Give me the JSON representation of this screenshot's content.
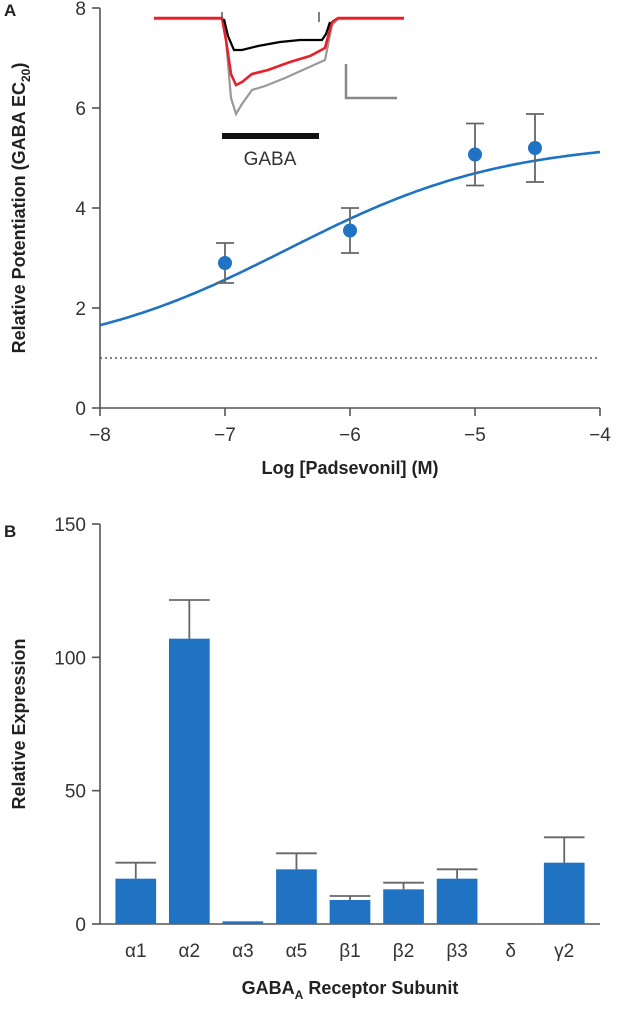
{
  "panels": {
    "a": {
      "letter": "A"
    },
    "b": {
      "letter": "B"
    }
  },
  "inset": {
    "label": "GABA",
    "trace_colors": {
      "control": "#000000",
      "padsevonil": "#e8202a",
      "washout": "#999999"
    }
  },
  "colors": {
    "accent": "#1f73c2",
    "axis": "#555555",
    "error_bar": "#666666"
  },
  "chart_data": [
    {
      "type": "scatter",
      "xlabel": "Log [Padsevonil] (M)",
      "ylabel_parts": {
        "main": "Relative Potentiation (GABA EC",
        "sub": "20",
        "close": ")"
      },
      "xlim": [
        -8,
        -4
      ],
      "ylim": [
        0,
        8
      ],
      "xticks": [
        -8,
        -7,
        -6,
        -5,
        -4
      ],
      "yticks": [
        0,
        2,
        4,
        6,
        8
      ],
      "xtick_labels": [
        "−8",
        "−7",
        "−6",
        "−5",
        "−4"
      ],
      "ytick_labels": [
        "0",
        "2",
        "4",
        "6",
        "8"
      ],
      "points": [
        {
          "x": -7.0,
          "y": 2.9,
          "err": 0.4
        },
        {
          "x": -6.0,
          "y": 3.55,
          "err": 0.45
        },
        {
          "x": -5.0,
          "y": 5.07,
          "err": 0.62
        },
        {
          "x": -4.52,
          "y": 5.2,
          "err": 0.68
        }
      ],
      "fit": {
        "bottom": 1.0,
        "top": 5.35,
        "log_ec50": -6.5,
        "hill": 0.5
      },
      "baseline": 1.0,
      "grid": false
    },
    {
      "type": "bar",
      "xlabel_parts": {
        "main": "GABA",
        "sub": "A",
        "rest": " Receptor Subunit"
      },
      "ylabel": "Relative Expression",
      "categories": [
        "α1",
        "α2",
        "α3",
        "α5",
        "β1",
        "β2",
        "β3",
        "δ",
        "γ2"
      ],
      "values": [
        17,
        107,
        1,
        20.5,
        9,
        13,
        17,
        0,
        23
      ],
      "errors": [
        6,
        14.5,
        0,
        6,
        1.5,
        2.5,
        3.5,
        0,
        9.5
      ],
      "ylim": [
        0,
        150
      ],
      "yticks": [
        0,
        50,
        100,
        150
      ],
      "ytick_labels": [
        "0",
        "50",
        "100",
        "150"
      ],
      "grid": false
    }
  ]
}
